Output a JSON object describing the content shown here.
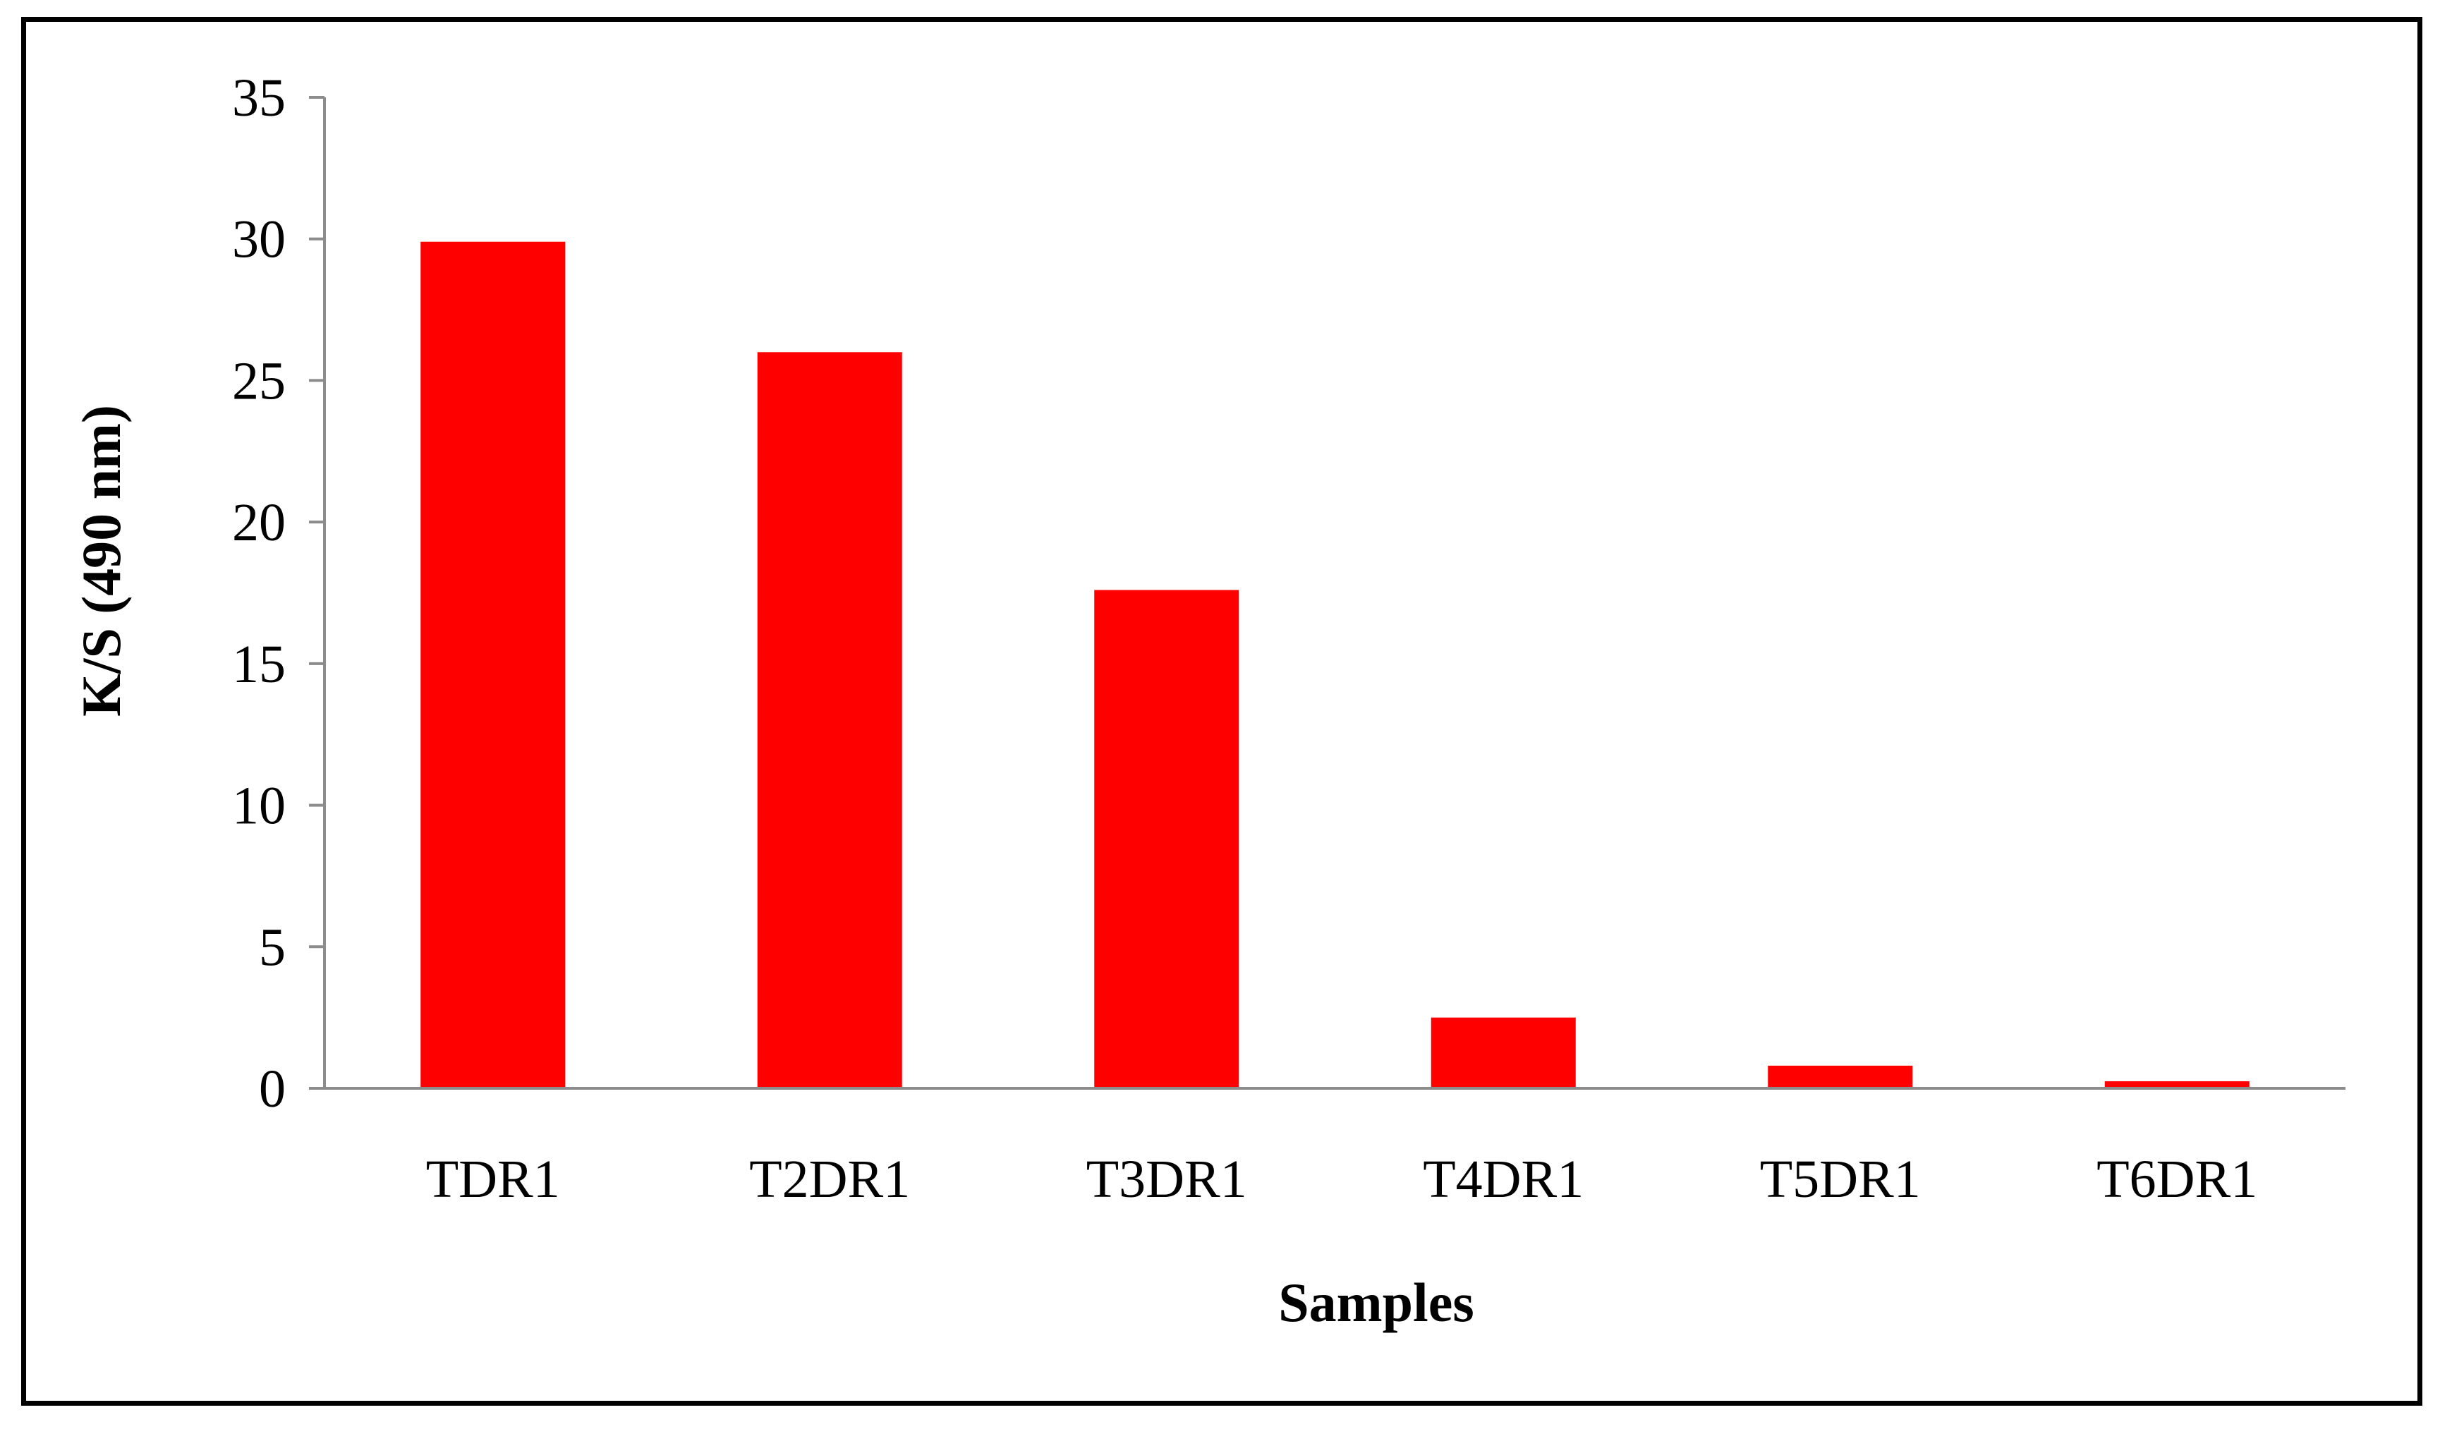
{
  "chart_data": {
    "type": "bar",
    "categories": [
      "TDR1",
      "T2DR1",
      "T3DR1",
      "T4DR1",
      "T5DR1",
      "T6DR1"
    ],
    "values": [
      29.9,
      26.0,
      17.6,
      2.5,
      0.8,
      0.25
    ],
    "title": "",
    "xlabel": "Samples",
    "ylabel": "K/S (490 nm)",
    "ylim": [
      0,
      35
    ],
    "yticks": [
      0,
      5,
      10,
      15,
      20,
      25,
      30,
      35
    ],
    "grid": false,
    "legend": "none",
    "colors": {
      "bar": "#ff0000",
      "axis": "#8c8c8c",
      "text": "#000000",
      "frame": "#000000"
    }
  }
}
